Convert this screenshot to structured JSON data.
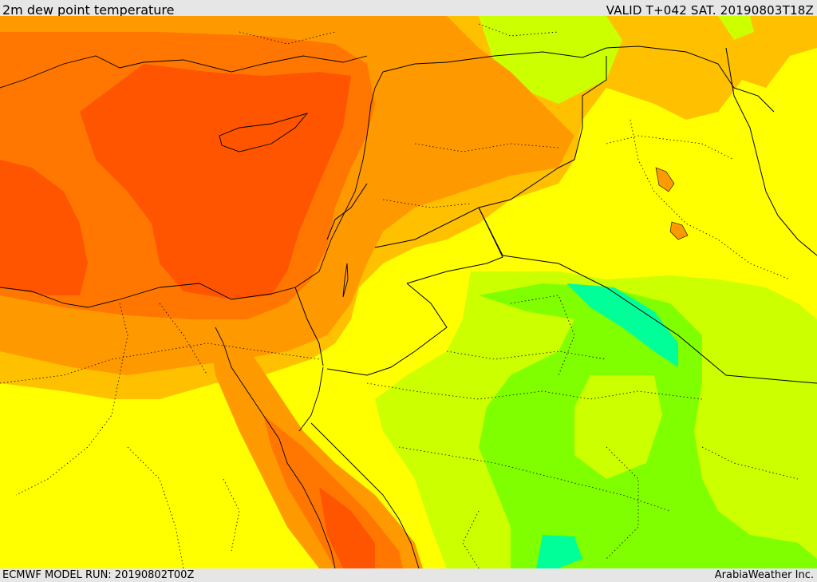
{
  "header": {
    "title": "2m dew point temperature",
    "valid": "VALID T+042 SAT. 20190803T18Z"
  },
  "footer": {
    "model_run": "ECMWF MODEL RUN: 20190802T00Z",
    "credit": "ArabiaWeather Inc."
  },
  "map": {
    "region": "Eastern Mediterranean / Levant / Arabia",
    "colors": {
      "red": "#ff5500",
      "dark_orange": "#ff7700",
      "orange": "#ff9900",
      "light_orange": "#ffc000",
      "yellow": "#ffff00",
      "yellow_green": "#ccff00",
      "green": "#80ff00",
      "spring_green": "#00ff99",
      "boundary": "#000000"
    }
  }
}
